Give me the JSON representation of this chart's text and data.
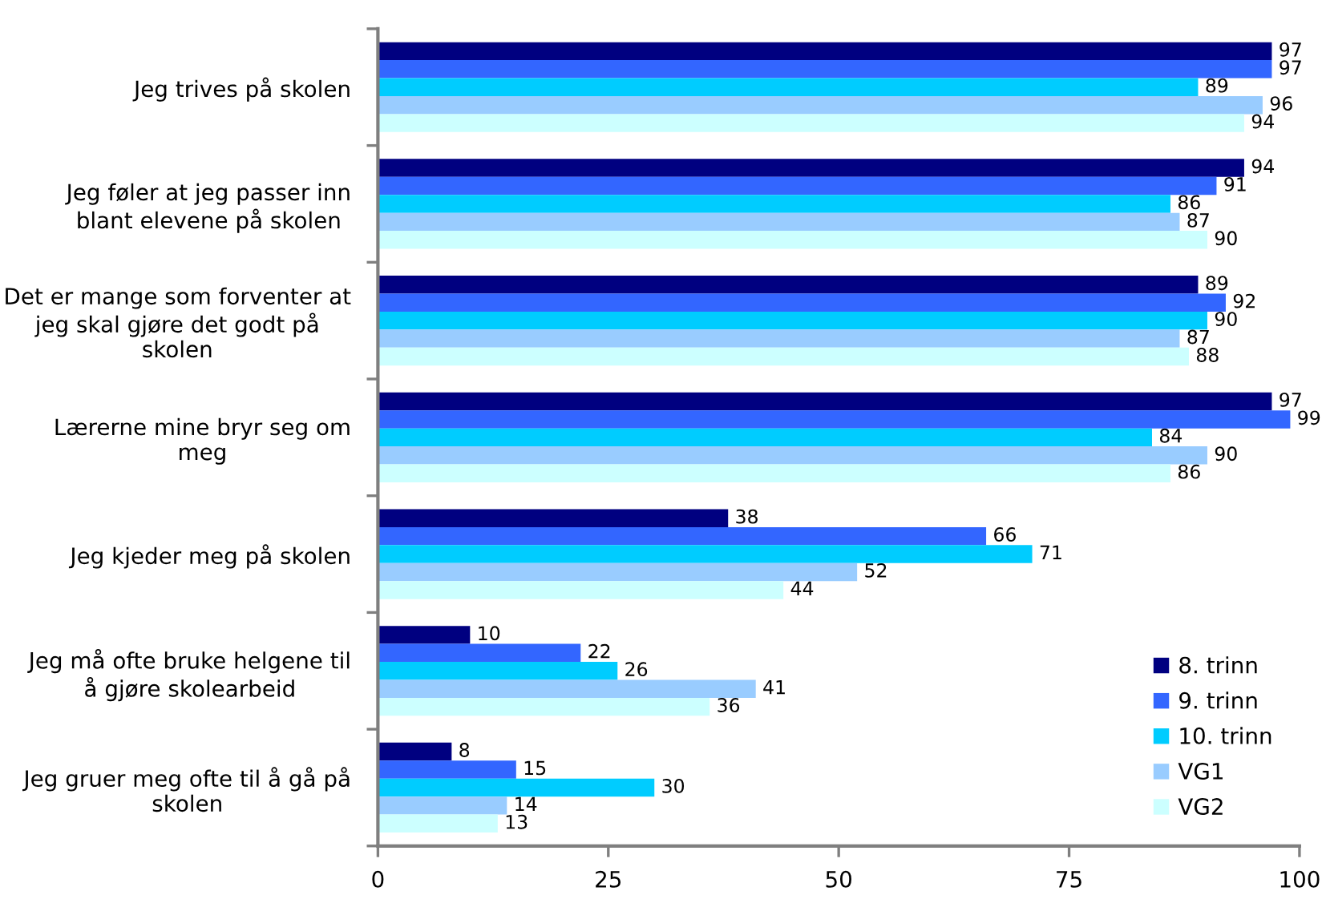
{
  "chart_data": {
    "type": "bar",
    "orientation": "horizontal",
    "categories": [
      "Jeg trives på skolen",
      "Jeg føler at jeg passer inn\nblant elevene på skolen",
      "Det er mange som forventer at\njeg skal gjøre det godt på\nskolen",
      "Lærerne mine bryr seg om\nmeg",
      "Jeg kjeder meg på skolen",
      "Jeg må ofte bruke helgene til\nå gjøre skolearbeid",
      "Jeg gruer meg ofte til å gå på\nskolen"
    ],
    "series": [
      {
        "name": "8. trinn",
        "color": "#000080",
        "values": [
          97,
          94,
          89,
          97,
          38,
          10,
          8
        ]
      },
      {
        "name": "9. trinn",
        "color": "#3366ff",
        "values": [
          97,
          91,
          92,
          99,
          66,
          22,
          15
        ]
      },
      {
        "name": "10. trinn",
        "color": "#00ccff",
        "values": [
          89,
          86,
          90,
          84,
          71,
          26,
          30
        ]
      },
      {
        "name": "VG1",
        "color": "#99ccff",
        "values": [
          96,
          87,
          87,
          90,
          52,
          41,
          14
        ]
      },
      {
        "name": "VG2",
        "color": "#ccffff",
        "values": [
          94,
          90,
          88,
          86,
          44,
          36,
          13
        ]
      }
    ],
    "xlim": [
      0,
      100
    ],
    "xticks": [
      0,
      25,
      50,
      75,
      100
    ],
    "data_labels": true,
    "legend": "bottom right"
  }
}
